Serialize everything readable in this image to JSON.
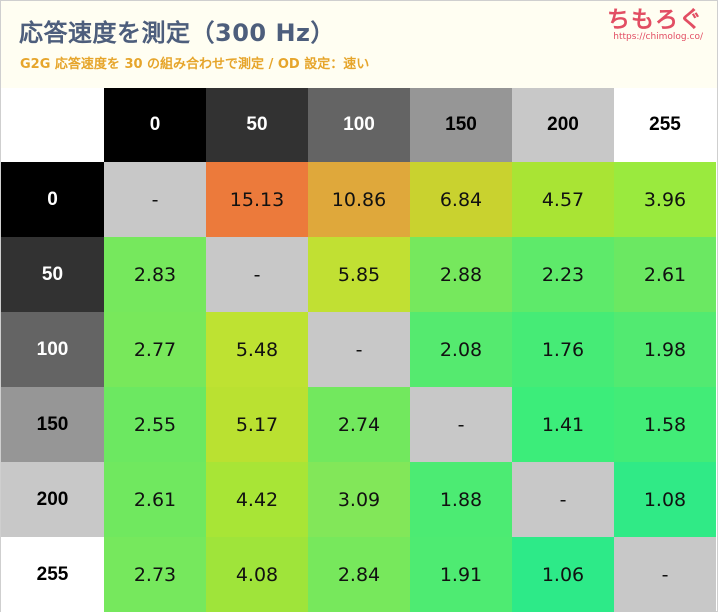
{
  "header": {
    "title": "応答速度を測定（300 Hz）",
    "subtitle": "G2G 応答速度を 30 の組み合わせで測定 / OD 設定：速い"
  },
  "logo": {
    "text": "ちもろぐ",
    "url": "https://chimolog.co/"
  },
  "colors": {
    "title": "#4d5e7c",
    "subtitle": "#e6a52b",
    "logo": "#e24e63",
    "header_bg": "#fffef2",
    "diagonal": "#c8c8c8"
  },
  "chart_data": {
    "type": "heatmap",
    "title": "応答速度を測定（300 Hz）",
    "subtitle": "G2G 応答速度を 30 の組み合わせで測定 / OD 設定：速い",
    "columns": [
      "0",
      "50",
      "100",
      "150",
      "200",
      "255"
    ],
    "rows": [
      "0",
      "50",
      "100",
      "150",
      "200",
      "255"
    ],
    "header_colors": [
      "#000000",
      "#323232",
      "#646464",
      "#969696",
      "#c8c8c8",
      "#ffffff"
    ],
    "values": [
      [
        "-",
        "15.13",
        "10.86",
        "6.84",
        "4.57",
        "3.96"
      ],
      [
        "2.83",
        "-",
        "5.85",
        "2.88",
        "2.23",
        "2.61"
      ],
      [
        "2.77",
        "5.48",
        "-",
        "2.08",
        "1.76",
        "1.98"
      ],
      [
        "2.55",
        "5.17",
        "2.74",
        "-",
        "1.41",
        "1.58"
      ],
      [
        "2.61",
        "4.42",
        "3.09",
        "1.88",
        "-",
        "1.08"
      ],
      [
        "2.73",
        "4.08",
        "2.84",
        "1.91",
        "1.06",
        "-"
      ]
    ],
    "cell_colors": [
      [
        "#c8c8c8",
        "#ec7a3b",
        "#dfa83b",
        "#c9d22f",
        "#a9e434",
        "#9aea3e"
      ],
      [
        "#76e85d",
        "#c8c8c8",
        "#c1e033",
        "#76e85d",
        "#5eea6a",
        "#6be862"
      ],
      [
        "#78e85b",
        "#bee232",
        "#c8c8c8",
        "#55ea6f",
        "#46eb76",
        "#52ea71"
      ],
      [
        "#6ce861",
        "#bae131",
        "#72e85e",
        "#c8c8c8",
        "#3ced7a",
        "#42ec77"
      ],
      [
        "#70e85f",
        "#a8e536",
        "#82e759",
        "#4ceb73",
        "#c8c8c8",
        "#30ea86"
      ],
      [
        "#76e85d",
        "#9fe43a",
        "#77e85c",
        "#4eeb72",
        "#2dea88",
        "#c8c8c8"
      ]
    ]
  }
}
